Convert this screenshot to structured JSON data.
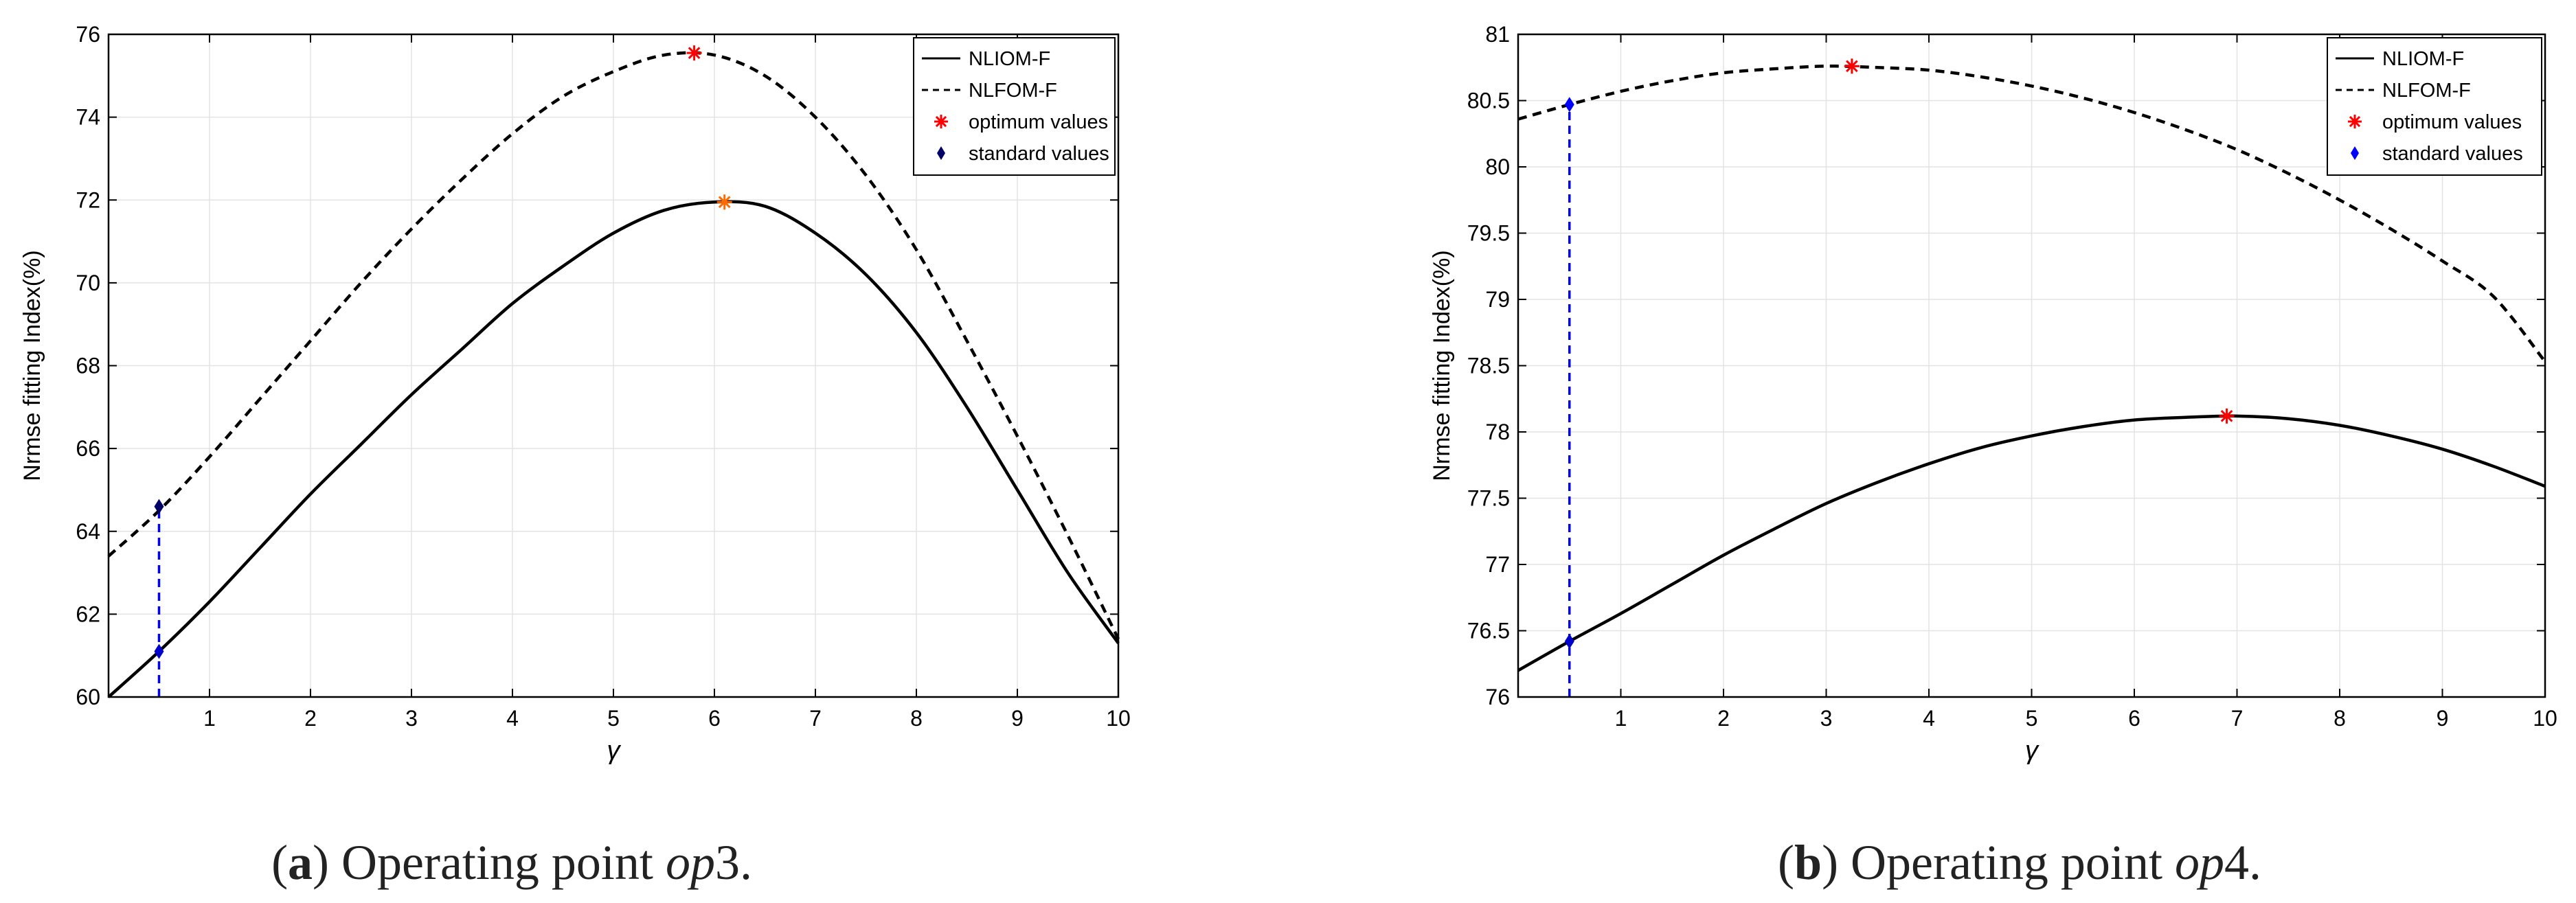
{
  "chart_data": [
    {
      "type": "line",
      "caption": {
        "label": "a",
        "prefix": "(",
        "suffix": ") Operating point ",
        "op": "op",
        "num": "3."
      },
      "xlabel": "γ",
      "ylabel": "Nrmse fitting Index(%)",
      "xlim": [
        0,
        10
      ],
      "ylim": [
        60,
        76
      ],
      "xticks": [
        1,
        2,
        3,
        4,
        5,
        6,
        7,
        8,
        9,
        10
      ],
      "yticks": [
        60,
        62,
        64,
        66,
        68,
        70,
        72,
        74,
        76
      ],
      "grid": true,
      "legend_position": "top-right",
      "legend": {
        "solid": "NLIOM-F",
        "dashed": "NLFOM-F",
        "optimum": "optimum values",
        "standard": "standard values"
      },
      "series": [
        {
          "name": "NLIOM-F",
          "style": "solid",
          "color": "#000000",
          "x": [
            0,
            0.5,
            1,
            1.5,
            2,
            2.5,
            3,
            3.5,
            4,
            4.5,
            5,
            5.5,
            6,
            6.5,
            7,
            7.5,
            8,
            8.5,
            9,
            9.5,
            10
          ],
          "y": [
            60.0,
            61.1,
            62.3,
            63.6,
            64.9,
            66.1,
            67.3,
            68.4,
            69.5,
            70.4,
            71.2,
            71.75,
            71.95,
            71.85,
            71.2,
            70.2,
            68.8,
            67.0,
            65.0,
            63.0,
            61.3
          ]
        },
        {
          "name": "NLFOM-F",
          "style": "dashed",
          "color": "#000000",
          "x": [
            0,
            0.5,
            1,
            1.5,
            2,
            2.5,
            3,
            3.5,
            4,
            4.5,
            5,
            5.5,
            6,
            6.5,
            7,
            7.5,
            8,
            8.5,
            9,
            9.5,
            10
          ],
          "y": [
            63.4,
            64.5,
            65.8,
            67.2,
            68.6,
            70.0,
            71.3,
            72.5,
            73.6,
            74.5,
            75.1,
            75.5,
            75.5,
            75.0,
            74.0,
            72.6,
            70.8,
            68.6,
            66.3,
            63.9,
            61.4
          ]
        }
      ],
      "optimum_points": [
        {
          "series": "NLFOM-F",
          "x": 5.8,
          "y": 75.55,
          "color": "#ff0000"
        },
        {
          "series": "NLIOM-F",
          "x": 6.1,
          "y": 71.95,
          "color": "#ff6a00"
        }
      ],
      "standard_points": [
        {
          "series": "NLFOM-F",
          "x": 0.5,
          "y": 64.6,
          "color": "#000066"
        },
        {
          "series": "NLIOM-F",
          "x": 0.5,
          "y": 61.1,
          "color": "#0000cc"
        }
      ],
      "standard_line": {
        "x": 0.5,
        "from": 60,
        "to": 64.6,
        "color": "#0000ff"
      }
    },
    {
      "type": "line",
      "caption": {
        "label": "b",
        "prefix": "(",
        "suffix": ") Operating point ",
        "op": "op",
        "num": "4."
      },
      "xlabel": "γ",
      "ylabel": "Nrmse fitting Index(%)",
      "xlim": [
        0,
        10
      ],
      "ylim": [
        76,
        81
      ],
      "xticks": [
        1,
        2,
        3,
        4,
        5,
        6,
        7,
        8,
        9,
        10
      ],
      "yticks": [
        76,
        76.5,
        77,
        77.5,
        78,
        78.5,
        79,
        79.5,
        80,
        80.5,
        81
      ],
      "grid": true,
      "legend_position": "top-right",
      "legend": {
        "solid": "NLIOM-F",
        "dashed": "NLFOM-F",
        "optimum": "optimum values",
        "standard": "standard values"
      },
      "series": [
        {
          "name": "NLIOM-F",
          "style": "solid",
          "color": "#000000",
          "x": [
            0,
            0.5,
            1,
            1.5,
            2,
            2.5,
            3,
            3.5,
            4,
            4.5,
            5,
            5.5,
            6,
            6.5,
            7,
            7.5,
            8,
            8.5,
            9,
            9.5,
            10
          ],
          "y": [
            76.2,
            76.42,
            76.63,
            76.85,
            77.07,
            77.27,
            77.46,
            77.62,
            77.76,
            77.88,
            77.97,
            78.04,
            78.09,
            78.11,
            78.12,
            78.1,
            78.05,
            77.97,
            77.87,
            77.74,
            77.59
          ]
        },
        {
          "name": "NLFOM-F",
          "style": "dashed",
          "color": "#000000",
          "x": [
            0,
            0.5,
            1,
            1.5,
            2,
            2.5,
            3,
            3.5,
            4,
            4.5,
            5,
            5.5,
            6,
            6.5,
            7,
            7.5,
            8,
            8.5,
            9,
            9.5,
            10
          ],
          "y": [
            80.36,
            80.47,
            80.57,
            80.65,
            80.71,
            80.74,
            80.76,
            80.75,
            80.73,
            80.68,
            80.61,
            80.52,
            80.41,
            80.28,
            80.13,
            79.95,
            79.75,
            79.53,
            79.29,
            79.02,
            78.53
          ]
        }
      ],
      "optimum_points": [
        {
          "series": "NLFOM-F",
          "x": 3.25,
          "y": 80.76,
          "color": "#ff0000"
        },
        {
          "series": "NLIOM-F",
          "x": 6.9,
          "y": 78.12,
          "color": "#ff0000"
        }
      ],
      "standard_points": [
        {
          "series": "NLFOM-F",
          "x": 0.5,
          "y": 80.47,
          "color": "#0000ff"
        },
        {
          "series": "NLIOM-F",
          "x": 0.5,
          "y": 76.42,
          "color": "#0000cc"
        }
      ],
      "standard_line": {
        "x": 0.5,
        "from": 76,
        "to": 80.47,
        "color": "#0000ff"
      }
    }
  ]
}
